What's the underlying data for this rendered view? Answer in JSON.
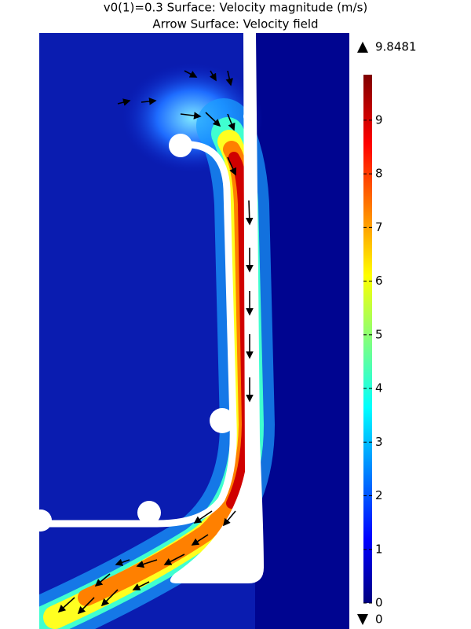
{
  "chart_data": {
    "type": "surface",
    "title": [
      "v0(1)=0.3   Surface: Velocity magnitude (m/s)",
      "Arrow Surface: Velocity field"
    ],
    "zlim": [
      0,
      9.8481
    ],
    "zticks": [
      0,
      1,
      2,
      3,
      4,
      5,
      6,
      7,
      8,
      9
    ]
  }
}
